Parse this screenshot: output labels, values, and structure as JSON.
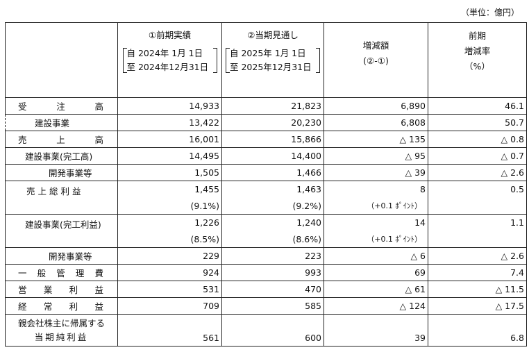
{
  "unit_label": "（単位：億円）",
  "header": {
    "col1": {
      "title": "①前期実績",
      "from": "自 2024年  1月  1日",
      "to": "至 2024年12月31日"
    },
    "col2": {
      "title": "②当期見通し",
      "from": "自 2025年  1月  1日",
      "to": "至 2025年12月31日"
    },
    "col3": {
      "line1": "増減額",
      "line2": "(②-①)"
    },
    "col4": {
      "line1": "前期",
      "line2": "増減率",
      "line3": "（%）"
    }
  },
  "rows": {
    "orders": {
      "label": "受注高",
      "v1": "14,933",
      "v2": "21,823",
      "diff": "6,890",
      "rate": "46.1"
    },
    "orders_construction": {
      "label": "建設事業",
      "v1": "13,422",
      "v2": "20,230",
      "diff": "6,808",
      "rate": "50.7"
    },
    "sales": {
      "label": "売上高",
      "v1": "16,001",
      "v2": "15,866",
      "diff": "△ 135",
      "rate": "△ 0.8"
    },
    "sales_construction": {
      "label": "建設事業(完工高)",
      "v1": "14,495",
      "v2": "14,400",
      "diff": "△ 95",
      "rate": "△ 0.7"
    },
    "sales_development": {
      "label": "開発事業等",
      "v1": "1,505",
      "v2": "1,466",
      "diff": "△ 39",
      "rate": "△ 2.6"
    },
    "gross_profit": {
      "label": "売上総利益",
      "v1": "1,455",
      "v2": "1,463",
      "diff": "8",
      "rate": "0.5",
      "v1_pct": "(9.1%)",
      "v2_pct": "(9.2%)",
      "diff_pt": "（+0.1 ﾎﾟｲﾝﾄ）"
    },
    "gp_construction": {
      "label": "建設事業(完工利益)",
      "v1": "1,226",
      "v2": "1,240",
      "diff": "14",
      "rate": "1.1",
      "v1_pct": "(8.5%)",
      "v2_pct": "(8.6%)",
      "diff_pt": "（+0.1 ﾎﾟｲﾝﾄ）"
    },
    "gp_development": {
      "label": "開発事業等",
      "v1": "229",
      "v2": "223",
      "diff": "△ 6",
      "rate": "△ 2.6"
    },
    "sga": {
      "label": "一般管理費",
      "v1": "924",
      "v2": "993",
      "diff": "69",
      "rate": "7.4"
    },
    "operating_income": {
      "label": "営業利益",
      "v1": "531",
      "v2": "470",
      "diff": "△ 61",
      "rate": "△ 11.5"
    },
    "ordinary_income": {
      "label": "経常利益",
      "v1": "709",
      "v2": "585",
      "diff": "△ 124",
      "rate": "△ 17.5"
    },
    "net_income": {
      "label1": "親会社株主に帰属する",
      "label2": "当期純利益",
      "v1": "561",
      "v2": "600",
      "diff": "39",
      "rate": "6.8"
    }
  }
}
